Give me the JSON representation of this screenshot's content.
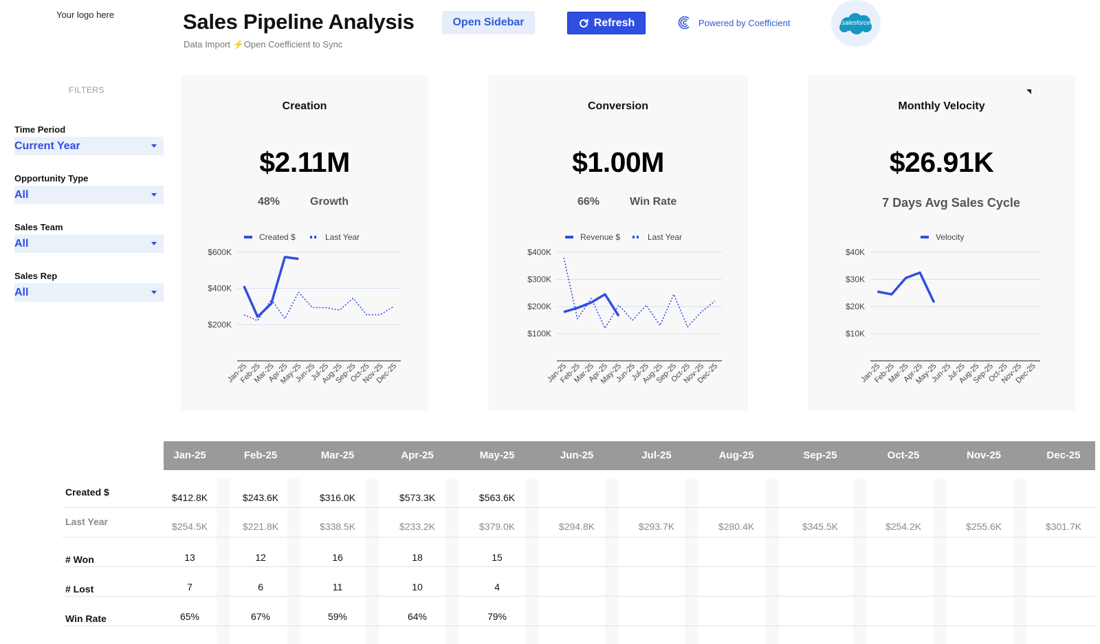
{
  "header": {
    "logo_text": "Your logo here",
    "title": "Sales Pipeline Analysis",
    "subtitle_prefix": "Data Import",
    "subtitle_suffix": "Open Coefficient to Sync",
    "open_sidebar_label": "Open Sidebar",
    "refresh_label": "Refresh",
    "powered_by_label": "Powered by Coefficient",
    "salesforce_label": "salesforce",
    "accent_color": "#2f4fe0"
  },
  "filters": {
    "heading": "FILTERS",
    "items": [
      {
        "label": "Time Period",
        "value": "Current Year"
      },
      {
        "label": "Opportunity Type",
        "value": "All"
      },
      {
        "label": "Sales Team",
        "value": "All"
      },
      {
        "label": "Sales Rep",
        "value": "All"
      }
    ]
  },
  "cards": [
    {
      "title": "Creation",
      "value": "$2.11M",
      "metric_value": "48%",
      "metric_label": "Growth"
    },
    {
      "title": "Conversion",
      "value": "$1.00M",
      "metric_value": "66%",
      "metric_label": "Win Rate"
    },
    {
      "title": "Monthly Velocity",
      "value": "$26.91K",
      "metric_value": "",
      "metric_label": "7 Days Avg Sales Cycle"
    }
  ],
  "chart_data": [
    {
      "type": "line",
      "x": [
        "Jan-25",
        "Feb-25",
        "Mar-25",
        "Apr-25",
        "May-25",
        "Jun-25",
        "Jul-25",
        "Aug-25",
        "Sep-25",
        "Oct-25",
        "Nov-25",
        "Dec-25"
      ],
      "ylim": [
        0,
        600000
      ],
      "yticks": [
        "$600K",
        "$400K",
        "$200K"
      ],
      "ytick_values": [
        600000,
        400000,
        200000
      ],
      "grid": true,
      "legend": "top",
      "series": [
        {
          "name": "Created $",
          "style": "solid",
          "values": [
            412800,
            243600,
            316000,
            573300,
            563600,
            null,
            null,
            null,
            null,
            null,
            null,
            null
          ]
        },
        {
          "name": "Last Year",
          "style": "dotted",
          "values": [
            254500,
            221800,
            338500,
            233200,
            379000,
            294800,
            293700,
            280400,
            345500,
            254200,
            255600,
            301700
          ]
        }
      ]
    },
    {
      "type": "line",
      "x": [
        "Jan-25",
        "Feb-25",
        "Mar-25",
        "Apr-25",
        "May-25",
        "Jun-25",
        "Jul-25",
        "Aug-25",
        "Sep-25",
        "Oct-25",
        "Nov-25",
        "Dec-25"
      ],
      "ylim": [
        0,
        400000
      ],
      "yticks": [
        "$400K",
        "$300K",
        "$200K",
        "$100K"
      ],
      "ytick_values": [
        400000,
        300000,
        200000,
        100000
      ],
      "grid": true,
      "legend": "top",
      "series": [
        {
          "name": "Revenue $",
          "style": "solid",
          "values": [
            180000,
            195000,
            215000,
            245000,
            165000,
            null,
            null,
            null,
            null,
            null,
            null,
            null
          ]
        },
        {
          "name": "Last Year",
          "style": "dotted",
          "values": [
            380000,
            155000,
            230000,
            120000,
            205000,
            150000,
            205000,
            130000,
            245000,
            125000,
            180000,
            220000
          ]
        }
      ]
    },
    {
      "type": "line",
      "x": [
        "Jan-25",
        "Feb-25",
        "Mar-25",
        "Apr-25",
        "May-25",
        "Jun-25",
        "Jul-25",
        "Aug-25",
        "Sep-25",
        "Oct-25",
        "Nov-25",
        "Dec-25"
      ],
      "ylim": [
        0,
        40000
      ],
      "yticks": [
        "$40K",
        "$30K",
        "$20K",
        "$10K"
      ],
      "ytick_values": [
        40000,
        30000,
        20000,
        10000
      ],
      "grid": true,
      "legend": "top",
      "series": [
        {
          "name": "Velocity",
          "style": "solid",
          "values": [
            25500,
            24500,
            30500,
            32500,
            21500,
            null,
            null,
            null,
            null,
            null,
            null,
            null
          ]
        }
      ]
    }
  ],
  "table": {
    "months": [
      "Jan-25",
      "Feb-25",
      "Mar-25",
      "Apr-25",
      "May-25",
      "Jun-25",
      "Jul-25",
      "Aug-25",
      "Sep-25",
      "Oct-25",
      "Nov-25",
      "Dec-25"
    ],
    "rows": [
      {
        "label": "Created $",
        "muted": false,
        "values": [
          "$412.8K",
          "$243.6K",
          "$316.0K",
          "$573.3K",
          "$563.6K",
          "",
          "",
          "",
          "",
          "",
          "",
          ""
        ]
      },
      {
        "label": "Last Year",
        "muted": true,
        "values": [
          "$254.5K",
          "$221.8K",
          "$338.5K",
          "$233.2K",
          "$379.0K",
          "$294.8K",
          "$293.7K",
          "$280.4K",
          "$345.5K",
          "$254.2K",
          "$255.6K",
          "$301.7K"
        ]
      },
      {
        "label": "# Won",
        "muted": false,
        "values": [
          "13",
          "12",
          "16",
          "18",
          "15",
          "",
          "",
          "",
          "",
          "",
          "",
          ""
        ]
      },
      {
        "label": "# Lost",
        "muted": false,
        "values": [
          "7",
          "6",
          "11",
          "10",
          "4",
          "",
          "",
          "",
          "",
          "",
          "",
          ""
        ]
      },
      {
        "label": "Win Rate",
        "muted": false,
        "values": [
          "65%",
          "67%",
          "59%",
          "64%",
          "79%",
          "",
          "",
          "",
          "",
          "",
          "",
          ""
        ]
      }
    ]
  }
}
